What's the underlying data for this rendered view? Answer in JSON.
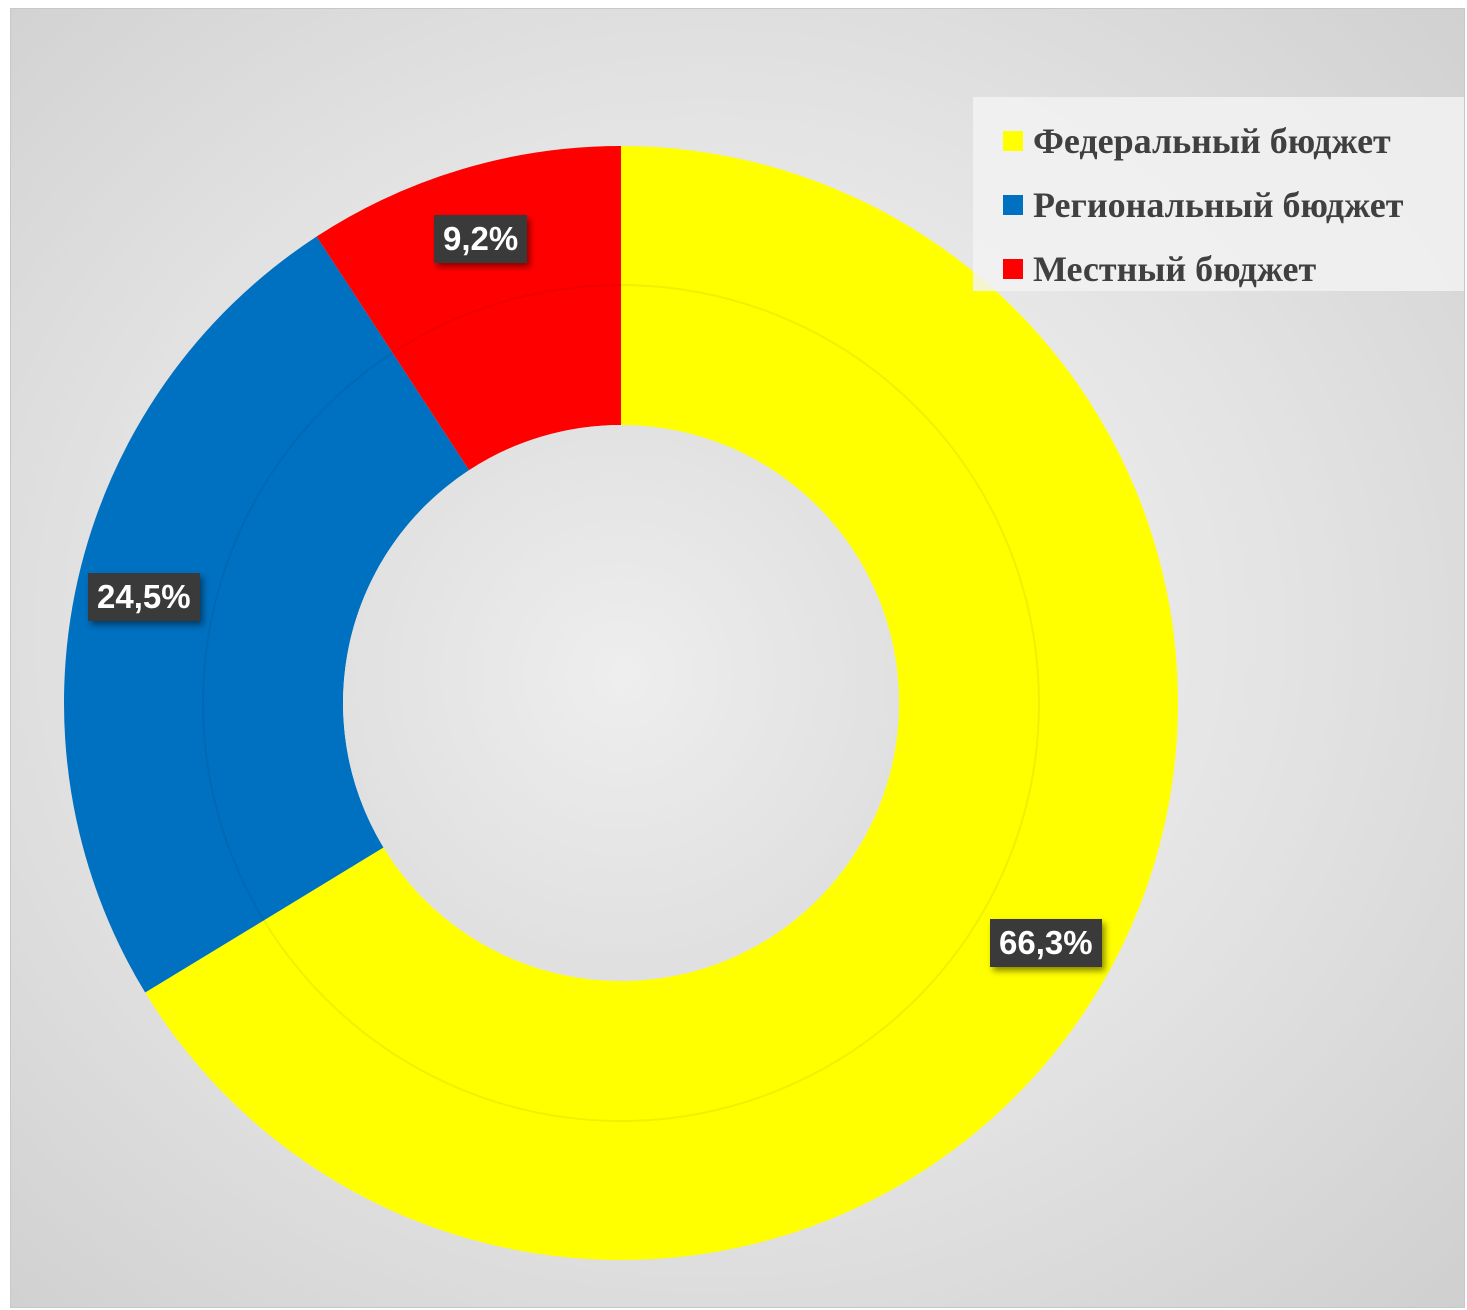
{
  "chart_data": {
    "type": "pie",
    "variant": "donut",
    "categories": [
      "Федеральный бюджет",
      "Региональный бюджет",
      "Местный бюджет"
    ],
    "values": [
      66.3,
      24.5,
      9.2
    ],
    "value_labels": [
      "66,3%",
      "24,5%",
      "9,2%"
    ],
    "colors": [
      "#FFFF00",
      "#0070C0",
      "#FF0000"
    ],
    "legend_position": "top-right"
  }
}
